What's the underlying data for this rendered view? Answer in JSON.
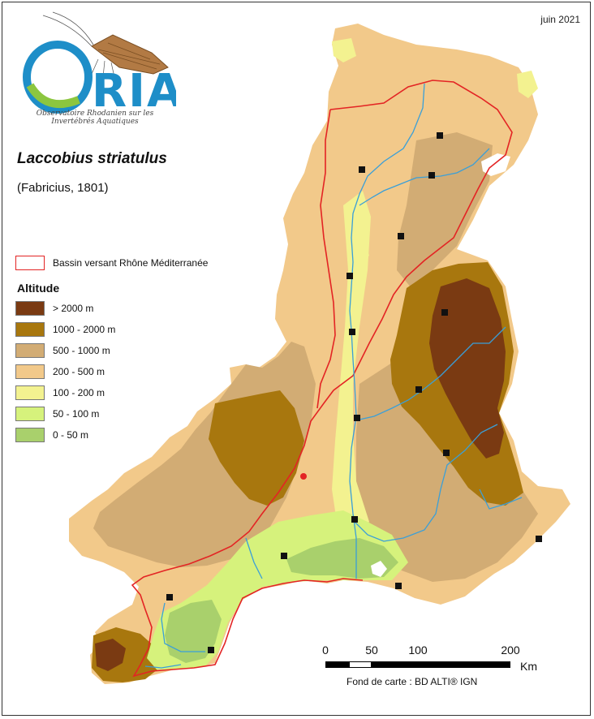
{
  "date": "juin 2021",
  "logo": {
    "wordmark": "ORIA",
    "subtitle_line1": "Observatoire Rhodanien sur les",
    "subtitle_line2": "Invertébrés Aquatiques"
  },
  "species": "Laccobius striatulus",
  "author": "(Fabricius, 1801)",
  "legend": {
    "basin_label": "Bassin versant Rhône Méditerranée",
    "basin_color": "#e32424",
    "altitude_title": "Altitude",
    "classes": [
      {
        "label": "> 2000 m",
        "color": "#7a3a12"
      },
      {
        "label": "1000 - 2000 m",
        "color": "#a8770e"
      },
      {
        "label": "500 - 1000 m",
        "color": "#d2ac74"
      },
      {
        "label": "200 - 500 m",
        "color": "#f2c98a"
      },
      {
        "label": "100 - 200 m",
        "color": "#f3f290"
      },
      {
        "label": "50 - 100 m",
        "color": "#d6f27c"
      },
      {
        "label": "0 - 50 m",
        "color": "#a9d06c"
      }
    ]
  },
  "scale": {
    "ticks": [
      "0",
      "50",
      "100",
      "200"
    ],
    "unit": "Km"
  },
  "credit": "Fond de carte : BD ALTI® IGN",
  "colors": {
    "river": "#3a9fd8",
    "observation": "#111111",
    "highlight_point": "#e32424"
  }
}
